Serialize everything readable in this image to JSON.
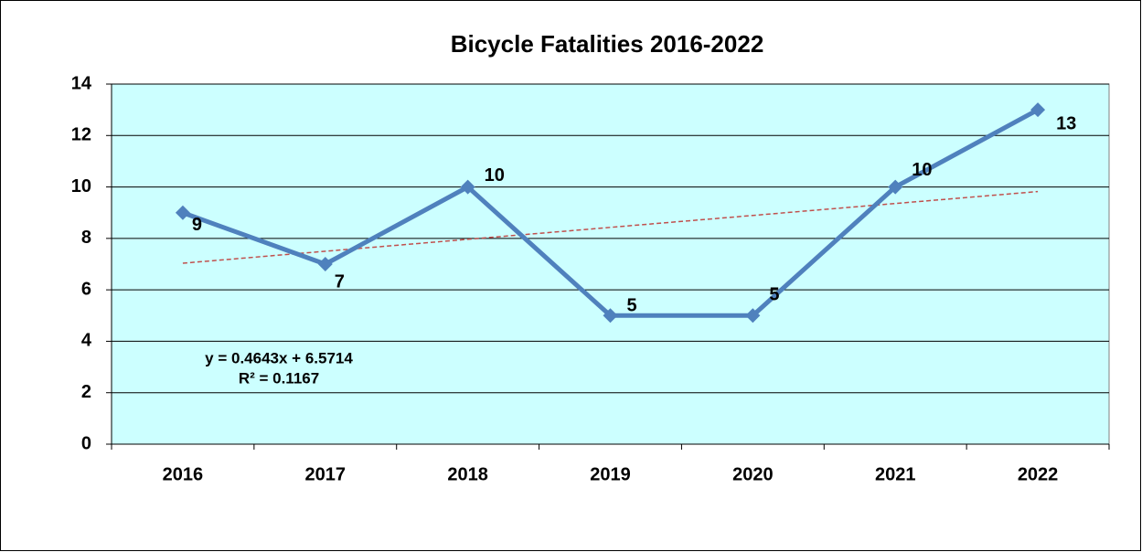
{
  "chart_data": {
    "type": "line",
    "title": "Bicycle Fatalities 2016-2022",
    "categories": [
      "2016",
      "2017",
      "2018",
      "2019",
      "2020",
      "2021",
      "2022"
    ],
    "series": [
      {
        "name": "Bicycle Fatalities",
        "color": "#4f81bd",
        "values": [
          9,
          7,
          10,
          5,
          5,
          10,
          13
        ]
      }
    ],
    "ylim": [
      0,
      14
    ],
    "yticks": [
      0,
      2,
      4,
      6,
      8,
      10,
      12,
      14
    ],
    "grid": true,
    "background": "#ccffff",
    "trendline": {
      "slope": 0.4643,
      "intercept": 6.5714,
      "color": "#c0504d"
    },
    "annotations": [
      "y = 0.4643x + 6.5714",
      "R² = 0.1167"
    ]
  }
}
